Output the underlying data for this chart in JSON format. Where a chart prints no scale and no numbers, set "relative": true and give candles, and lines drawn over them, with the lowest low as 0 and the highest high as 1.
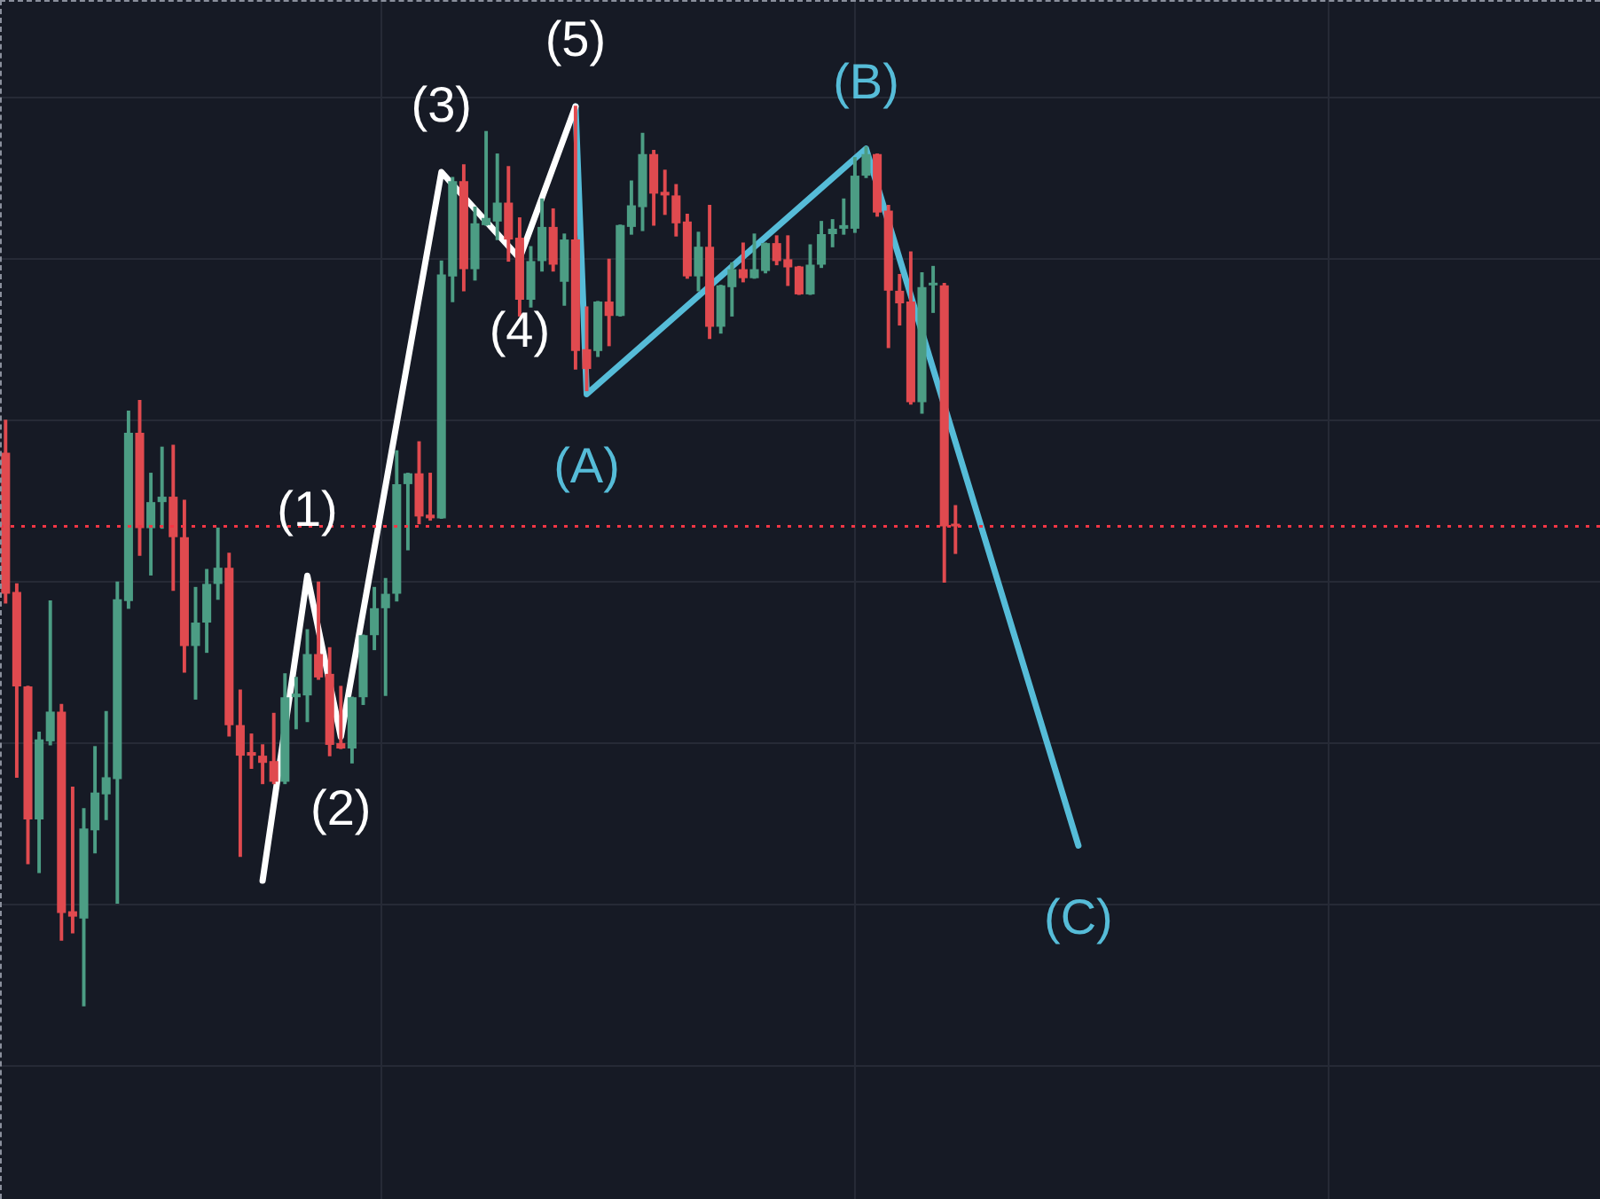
{
  "chart_data": {
    "type": "candlestick",
    "relative": true,
    "tick_labels": false,
    "grid": true,
    "annotations": [
      {
        "text": "(1)",
        "y": 0.478
      },
      {
        "text": "(2)",
        "y": 0.299
      },
      {
        "text": "(3)",
        "y": 0.927
      },
      {
        "text": "(4)",
        "y": 0.831
      },
      {
        "text": "(5)",
        "y": 1.0
      },
      {
        "text": "(A)",
        "y": 0.68
      },
      {
        "text": "(B)",
        "y": 0.953
      },
      {
        "text": "(C)",
        "y": 0.178
      }
    ],
    "categories": [
      null,
      null,
      null,
      null,
      null,
      null,
      null,
      null,
      null,
      null,
      null,
      null,
      null,
      null,
      null,
      null,
      null,
      null,
      null,
      null,
      null,
      null,
      null,
      null,
      null,
      null,
      null,
      null,
      null,
      null,
      null,
      null,
      null,
      null,
      null,
      null,
      null,
      null,
      null,
      null,
      null,
      null,
      null,
      null,
      null,
      null,
      null,
      null,
      null,
      null,
      null,
      null,
      null,
      null,
      null,
      null,
      null,
      null,
      null,
      null,
      null,
      null,
      null,
      null,
      null,
      null,
      null,
      null,
      null,
      null,
      null,
      null,
      null,
      null,
      null,
      null,
      null,
      null,
      null,
      null,
      null,
      null,
      null,
      null,
      null,
      null,
      null,
      null,
      null,
      null,
      null,
      null,
      null,
      null,
      null,
      null,
      null,
      null,
      null,
      null
    ],
    "ohlc": [
      [
        0.615,
        0.651,
        0.448,
        0.458
      ],
      [
        0.46,
        0.469,
        0.254,
        0.355
      ],
      [
        0.355,
        0.355,
        0.158,
        0.207
      ],
      [
        0.207,
        0.304,
        0.148,
        0.296
      ],
      [
        0.294,
        0.45,
        0.29,
        0.327
      ],
      [
        0.327,
        0.335,
        0.073,
        0.103
      ],
      [
        0.105,
        0.243,
        0.081,
        0.099
      ],
      [
        0.097,
        0.219,
        0,
        0.197
      ],
      [
        0.195,
        0.288,
        0.17,
        0.237
      ],
      [
        0.235,
        0.327,
        0.207,
        0.254
      ],
      [
        0.252,
        0.471,
        0.114,
        0.452
      ],
      [
        0.45,
        0.661,
        0.442,
        0.637
      ],
      [
        0.637,
        0.673,
        0.501,
        0.531
      ],
      [
        0.531,
        0.592,
        0.479,
        0.56
      ],
      [
        0.56,
        0.621,
        0.531,
        0.566
      ],
      [
        0.566,
        0.623,
        0.462,
        0.521
      ],
      [
        0.521,
        0.562,
        0.371,
        0.4
      ],
      [
        0.4,
        0.465,
        0.341,
        0.426
      ],
      [
        0.426,
        0.485,
        0.393,
        0.469
      ],
      [
        0.469,
        0.531,
        0.452,
        0.487
      ],
      [
        0.487,
        0.503,
        0.3,
        0.312
      ],
      [
        0.312,
        0.351,
        0.166,
        0.278
      ],
      [
        0.282,
        0.302,
        0.264,
        0.278
      ],
      [
        0.278,
        0.29,
        0.247,
        0.27
      ],
      [
        0.272,
        0.325,
        0.247,
        0.249
      ],
      [
        0.249,
        0.369,
        0.247,
        0.343
      ],
      [
        0.343,
        0.365,
        0.308,
        0.347
      ],
      [
        0.345,
        0.418,
        0.316,
        0.391
      ],
      [
        0.391,
        0.471,
        0.363,
        0.365
      ],
      [
        0.369,
        0.398,
        0.278,
        0.29
      ],
      [
        0.292,
        0.355,
        0.286,
        0.286
      ],
      [
        0.286,
        0.343,
        0.27,
        0.343
      ],
      [
        0.343,
        0.412,
        0.335,
        0.412
      ],
      [
        0.412,
        0.465,
        0.396,
        0.442
      ],
      [
        0.442,
        0.475,
        0.345,
        0.458
      ],
      [
        0.458,
        0.617,
        0.45,
        0.58
      ],
      [
        0.58,
        0.592,
        0.507,
        0.592
      ],
      [
        0.592,
        0.627,
        0.536,
        0.544
      ],
      [
        0.546,
        0.592,
        0.54,
        0.542
      ],
      [
        0.542,
        0.828,
        0.542,
        0.813
      ],
      [
        0.811,
        0.921,
        0.783,
        0.917
      ],
      [
        0.917,
        0.935,
        0.795,
        0.819
      ],
      [
        0.819,
        0.888,
        0.807,
        0.87
      ],
      [
        0.868,
        0.972,
        0.868,
        0.876
      ],
      [
        0.872,
        0.947,
        0.852,
        0.893
      ],
      [
        0.893,
        0.933,
        0.828,
        0.852
      ],
      [
        0.854,
        0.876,
        0.767,
        0.785
      ],
      [
        0.785,
        0.844,
        0.777,
        0.828
      ],
      [
        0.828,
        0.897,
        0.817,
        0.866
      ],
      [
        0.866,
        0.886,
        0.817,
        0.824
      ],
      [
        0.805,
        0.858,
        0.779,
        0.852
      ],
      [
        0.852,
        1.0,
        0.708,
        0.728
      ],
      [
        0.73,
        0.777,
        0.684,
        0.708
      ],
      [
        0.728,
        0.783,
        0.722,
        0.783
      ],
      [
        0.783,
        0.83,
        0.734,
        0.767
      ],
      [
        0.767,
        0.868,
        0.767,
        0.868
      ],
      [
        0.866,
        0.917,
        0.858,
        0.89
      ],
      [
        0.888,
        0.97,
        0.862,
        0.947
      ],
      [
        0.947,
        0.951,
        0.868,
        0.903
      ],
      [
        0.905,
        0.929,
        0.88,
        0.901
      ],
      [
        0.901,
        0.913,
        0.856,
        0.87
      ],
      [
        0.872,
        0.88,
        0.809,
        0.811
      ],
      [
        0.811,
        0.86,
        0.795,
        0.844
      ],
      [
        0.844,
        0.89,
        0.742,
        0.755
      ],
      [
        0.755,
        0.801,
        0.748,
        0.801
      ],
      [
        0.799,
        0.826,
        0.767,
        0.819
      ],
      [
        0.819,
        0.848,
        0.805,
        0.809
      ],
      [
        0.809,
        0.858,
        0.809,
        0.819
      ],
      [
        0.817,
        0.848,
        0.815,
        0.848
      ],
      [
        0.848,
        0.856,
        0.824,
        0.828
      ],
      [
        0.83,
        0.856,
        0.801,
        0.821
      ],
      [
        0.822,
        0.822,
        0.791,
        0.791
      ],
      [
        0.791,
        0.846,
        0.791,
        0.824
      ],
      [
        0.824,
        0.872,
        0.821,
        0.858
      ],
      [
        0.858,
        0.874,
        0.844,
        0.864
      ],
      [
        0.864,
        0.897,
        0.858,
        0.868
      ],
      [
        0.864,
        0.943,
        0.86,
        0.923
      ],
      [
        0.923,
        0.955,
        0.921,
        0.947
      ],
      [
        0.947,
        0.947,
        0.878,
        0.882
      ],
      [
        0.884,
        0.89,
        0.732,
        0.795
      ],
      [
        0.795,
        0.813,
        0.757,
        0.781
      ],
      [
        0.783,
        0.838,
        0.669,
        0.671
      ],
      [
        0.671,
        0.815,
        0.659,
        0.799
      ],
      [
        0.801,
        0.822,
        0.771,
        0.803
      ],
      [
        0.801,
        0.803,
        0.471,
        0.533
      ],
      [
        0.535,
        0.556,
        0.503,
        0.533
      ],
      null,
      null,
      null,
      null,
      null,
      null,
      null,
      null,
      null,
      null,
      null,
      null,
      null,
      null
    ],
    "series": [
      {
        "type": "line",
        "color": "#ffffff",
        "values": [
          null,
          null,
          null,
          null,
          null,
          null,
          null,
          null,
          null,
          null,
          null,
          null,
          null,
          null,
          null,
          null,
          null,
          null,
          null,
          null,
          null,
          null,
          null,
          0.139,
          null,
          null,
          null,
          0.478,
          null,
          null,
          0.299,
          null,
          null,
          null,
          null,
          null,
          null,
          null,
          null,
          0.927,
          null,
          null,
          null,
          null,
          null,
          null,
          0.831,
          null,
          null,
          null,
          null,
          1.0,
          null,
          null,
          null,
          null,
          null,
          null,
          null,
          null,
          null,
          null,
          null,
          null,
          null,
          null,
          null,
          null,
          null,
          null,
          null,
          null,
          null,
          null,
          null,
          null,
          null,
          null,
          null,
          null,
          null,
          null,
          null,
          null,
          null,
          null,
          null,
          null,
          null,
          null,
          null,
          null,
          null,
          null,
          null,
          null,
          null,
          null,
          null,
          null
        ]
      },
      {
        "type": "line",
        "color": "#56bcd8",
        "values": [
          null,
          null,
          null,
          null,
          null,
          null,
          null,
          null,
          null,
          null,
          null,
          null,
          null,
          null,
          null,
          null,
          null,
          null,
          null,
          null,
          null,
          null,
          null,
          null,
          null,
          null,
          null,
          null,
          null,
          null,
          null,
          null,
          null,
          null,
          null,
          null,
          null,
          null,
          null,
          null,
          null,
          null,
          null,
          null,
          null,
          null,
          null,
          null,
          null,
          null,
          null,
          1.0,
          0.68,
          null,
          null,
          null,
          null,
          null,
          null,
          null,
          null,
          null,
          null,
          null,
          null,
          null,
          null,
          null,
          null,
          null,
          null,
          null,
          null,
          null,
          null,
          null,
          null,
          0.953,
          null,
          null,
          null,
          null,
          null,
          null,
          null,
          null,
          null,
          null,
          null,
          null,
          null,
          null,
          null,
          null,
          null,
          null,
          0.178,
          null,
          null,
          null
        ]
      }
    ],
    "ref_lines": [
      {
        "axis": "y",
        "value": 0.533,
        "color": "#f23645",
        "line_style": "dotted"
      }
    ]
  }
}
